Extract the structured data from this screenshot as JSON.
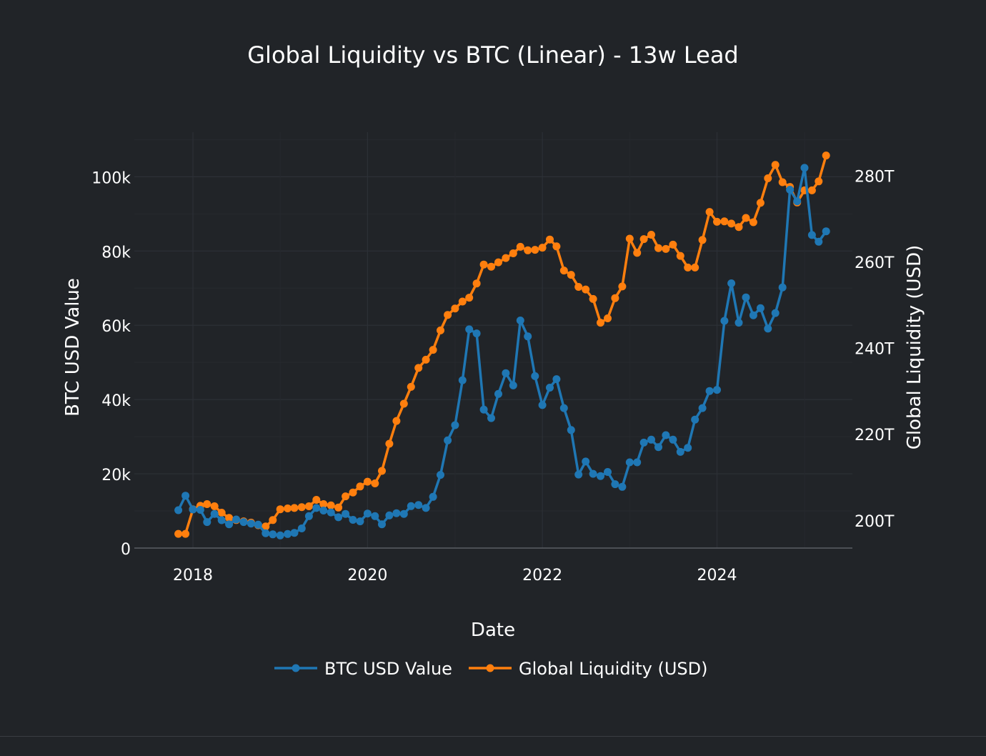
{
  "chart_data": {
    "type": "line",
    "title": "Global Liquidity vs BTC (Linear) - 13w Lead",
    "xlabel": "Date",
    "ylabel": "BTC USD Value",
    "y2label": "Global Liquidity (USD)",
    "x_ticks": [
      {
        "label": "2018",
        "year": 2018
      },
      {
        "label": "2020",
        "year": 2020
      },
      {
        "label": "2022",
        "year": 2022
      },
      {
        "label": "2024",
        "year": 2024
      }
    ],
    "y_ticks": [
      {
        "label": "0",
        "value": 0
      },
      {
        "label": "20k",
        "value": 20000
      },
      {
        "label": "40k",
        "value": 40000
      },
      {
        "label": "60k",
        "value": 60000
      },
      {
        "label": "80k",
        "value": 80000
      },
      {
        "label": "100k",
        "value": 100000
      }
    ],
    "y2_ticks": [
      {
        "label": "200T",
        "value": 200
      },
      {
        "label": "220T",
        "value": 220
      },
      {
        "label": "240T",
        "value": 240
      },
      {
        "label": "260T",
        "value": 260
      },
      {
        "label": "280T",
        "value": 280
      }
    ],
    "xlim": [
      "2017-05-01",
      "2025-07-20"
    ],
    "ylim": [
      0,
      112000
    ],
    "y2lim": [
      193.5,
      290
    ],
    "grid": true,
    "legend_position": "bottom-center",
    "x": [
      "2017-11-01",
      "2017-12-01",
      "2018-01-01",
      "2018-02-01",
      "2018-03-01",
      "2018-04-01",
      "2018-05-01",
      "2018-06-01",
      "2018-07-01",
      "2018-08-01",
      "2018-09-01",
      "2018-10-01",
      "2018-11-01",
      "2018-12-01",
      "2019-01-01",
      "2019-02-01",
      "2019-03-01",
      "2019-04-01",
      "2019-05-01",
      "2019-06-01",
      "2019-07-01",
      "2019-08-01",
      "2019-09-01",
      "2019-10-01",
      "2019-11-01",
      "2019-12-01",
      "2020-01-01",
      "2020-02-01",
      "2020-03-01",
      "2020-04-01",
      "2020-05-01",
      "2020-06-01",
      "2020-07-01",
      "2020-08-01",
      "2020-09-01",
      "2020-10-01",
      "2020-11-01",
      "2020-12-01",
      "2021-01-01",
      "2021-02-01",
      "2021-03-01",
      "2021-04-01",
      "2021-05-01",
      "2021-06-01",
      "2021-07-01",
      "2021-08-01",
      "2021-09-01",
      "2021-10-01",
      "2021-11-01",
      "2021-12-01",
      "2022-01-01",
      "2022-02-01",
      "2022-03-01",
      "2022-04-01",
      "2022-05-01",
      "2022-06-01",
      "2022-07-01",
      "2022-08-01",
      "2022-09-01",
      "2022-10-01",
      "2022-11-01",
      "2022-12-01",
      "2023-01-01",
      "2023-02-01",
      "2023-03-01",
      "2023-04-01",
      "2023-05-01",
      "2023-06-01",
      "2023-07-01",
      "2023-08-01",
      "2023-09-01",
      "2023-10-01",
      "2023-11-01",
      "2023-12-01",
      "2024-01-01",
      "2024-02-01",
      "2024-03-01",
      "2024-04-01",
      "2024-05-01",
      "2024-06-01",
      "2024-07-01",
      "2024-08-01",
      "2024-09-01",
      "2024-10-01",
      "2024-11-01",
      "2024-12-01",
      "2025-01-01",
      "2025-02-01",
      "2025-03-01",
      "2025-04-01"
    ],
    "series": [
      {
        "name": "BTC USD Value",
        "axis": "y",
        "color": "#1f77b4",
        "values": [
          10200,
          14100,
          10400,
          10300,
          7000,
          9200,
          7500,
          6400,
          7700,
          7000,
          6600,
          6300,
          4000,
          3700,
          3400,
          3800,
          4100,
          5300,
          8600,
          10800,
          10100,
          9600,
          8300,
          9200,
          7600,
          7200,
          9300,
          8600,
          6400,
          8800,
          9400,
          9200,
          11300,
          11600,
          10800,
          13800,
          19700,
          29000,
          33100,
          45200,
          58900,
          57800,
          37300,
          35000,
          41500,
          47100,
          43800,
          61300,
          57000,
          46300,
          38500,
          43200,
          45500,
          37700,
          31800,
          19800,
          23300,
          20000,
          19400,
          20500,
          17200,
          16500,
          23100,
          23100,
          28400,
          29200,
          27200,
          30400,
          29200,
          25900,
          27000,
          34600,
          37700,
          42300,
          42600,
          61200,
          71300,
          60700,
          67500,
          62700,
          64600,
          59100,
          63300,
          70200,
          96500,
          93400,
          102400,
          84300,
          82500,
          85300
        ]
      },
      {
        "name": "Global Liquidity (USD)",
        "axis": "y2",
        "color": "#ff7f0e",
        "values": [
          196.8,
          196.8,
          202.5,
          203.3,
          203.7,
          203.2,
          201.7,
          200.5,
          200.0,
          199.7,
          199.4,
          198.8,
          198.5,
          200.0,
          202.5,
          202.7,
          202.8,
          203.0,
          203.2,
          204.7,
          203.7,
          203.4,
          202.9,
          205.5,
          206.4,
          207.8,
          208.9,
          208.5,
          211.4,
          217.7,
          223.0,
          227.0,
          230.9,
          235.3,
          237.2,
          239.5,
          244.0,
          247.6,
          249.1,
          250.7,
          251.6,
          254.9,
          259.3,
          258.8,
          259.8,
          260.8,
          261.9,
          263.4,
          262.6,
          262.7,
          263.2,
          265.1,
          263.5,
          257.9,
          256.9,
          254.1,
          253.5,
          251.3,
          245.8,
          246.8,
          251.5,
          254.2,
          265.3,
          262.0,
          265.2,
          266.2,
          263.1,
          262.9,
          263.9,
          261.3,
          258.6,
          258.6,
          265.0,
          271.5,
          269.2,
          269.3,
          268.8,
          268.0,
          270.1,
          269.1,
          273.6,
          279.3,
          282.4,
          278.4,
          277.3,
          273.7,
          276.5,
          276.5,
          278.6,
          284.6
        ]
      }
    ]
  }
}
